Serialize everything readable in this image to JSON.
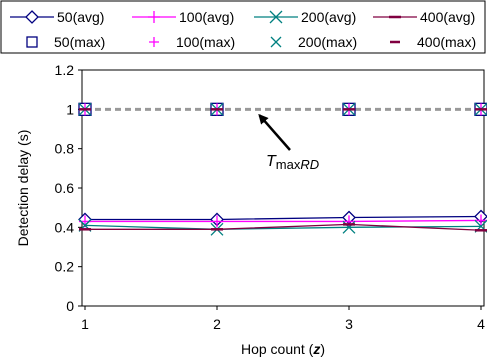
{
  "chart_data": {
    "type": "line",
    "title": "",
    "xlabel": "Hop count (z)",
    "xlabel_prefix": "Hop count (",
    "xlabel_var": "z",
    "xlabel_suffix": ")",
    "ylabel": "Detection delay (s)",
    "x": [
      1,
      2,
      3,
      4
    ],
    "xticks": [
      "1",
      "2",
      "3",
      "4"
    ],
    "yticks": [
      "0",
      "0.2",
      "0.4",
      "0.6",
      "0.8",
      "1",
      "1.2"
    ],
    "ylim": [
      0,
      1.2
    ],
    "grid": false,
    "legend_position": "top",
    "series": [
      {
        "name": "50(avg)",
        "kind": "line",
        "marker": "diamond",
        "color": "#000080",
        "values": [
          0.44,
          0.44,
          0.45,
          0.455
        ]
      },
      {
        "name": "100(avg)",
        "kind": "line",
        "marker": "plus",
        "color": "#ff00ff",
        "values": [
          0.43,
          0.43,
          0.43,
          0.435
        ]
      },
      {
        "name": "200(avg)",
        "kind": "line",
        "marker": "x",
        "color": "#008080",
        "values": [
          0.41,
          0.39,
          0.4,
          0.405
        ]
      },
      {
        "name": "400(avg)",
        "kind": "line",
        "marker": "dash",
        "color": "#800040",
        "values": [
          0.39,
          0.39,
          0.415,
          0.385
        ]
      },
      {
        "name": "50(max)",
        "kind": "marker",
        "marker": "square",
        "color": "#000080",
        "values": [
          1.0,
          1.0,
          1.0,
          1.0
        ]
      },
      {
        "name": "100(max)",
        "kind": "marker",
        "marker": "plus",
        "color": "#ff00ff",
        "values": [
          1.0,
          1.0,
          1.0,
          1.0
        ]
      },
      {
        "name": "200(max)",
        "kind": "marker",
        "marker": "x",
        "color": "#008080",
        "values": [
          1.0,
          1.0,
          1.0,
          1.0
        ]
      },
      {
        "name": "400(max)",
        "kind": "marker",
        "marker": "dash",
        "color": "#800040",
        "values": [
          1.0,
          1.0,
          1.0,
          1.0
        ]
      }
    ],
    "reference_line": {
      "value": 1.0,
      "color": "#999999",
      "style": "dashed"
    },
    "annotation": {
      "base": "T",
      "subscript_plain": "max",
      "subscript_italic": "RD",
      "points_to": [
        2.3,
        1.0
      ]
    }
  }
}
